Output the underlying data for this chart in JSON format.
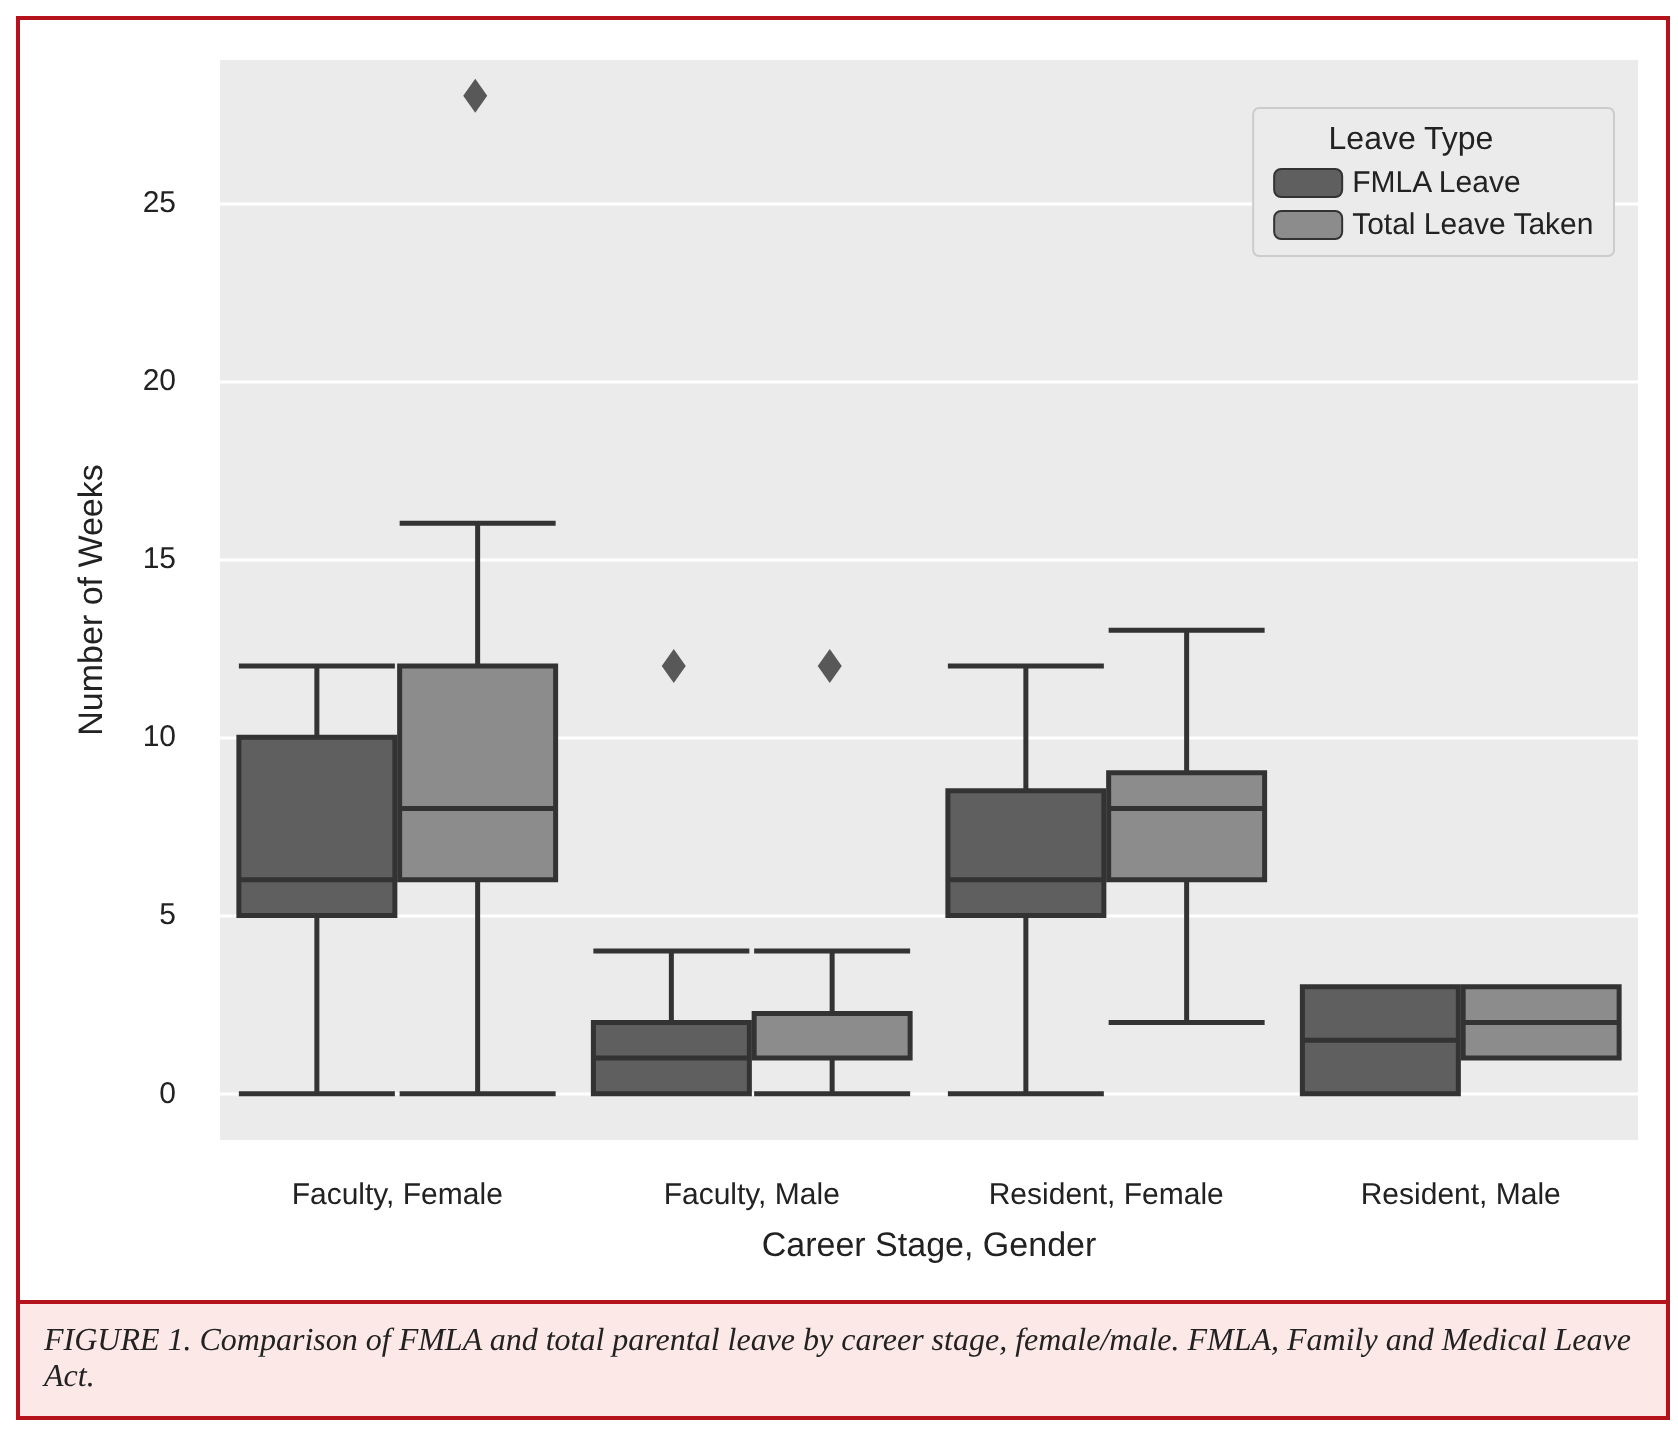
{
  "chart_data": {
    "type": "box",
    "xlabel": "Career Stage, Gender",
    "ylabel": "Number of Weeks",
    "legend_title": "Leave Type",
    "legend": "top right",
    "grid": "y",
    "ylim": [
      -1.3,
      29
    ],
    "yticks": [
      0,
      5,
      10,
      15,
      20,
      25
    ],
    "categories": [
      "Faculty, Female",
      "Faculty, Male",
      "Resident, Female",
      "Resident, Male"
    ],
    "series": [
      {
        "name": "FMLA Leave",
        "color": "#5f5f5f",
        "boxes": [
          {
            "low": 0,
            "q1": 5,
            "median": 6,
            "q3": 10,
            "high": 12
          },
          {
            "low": 0,
            "q1": 0,
            "median": 1,
            "q3": 2,
            "high": 4,
            "outliers": [
              12
            ]
          },
          {
            "low": 0,
            "q1": 5,
            "median": 6,
            "q3": 8.5,
            "high": 12
          },
          {
            "low": 0,
            "q1": 0,
            "median": 1.5,
            "q3": 3,
            "high": 3
          }
        ]
      },
      {
        "name": "Total Leave Taken",
        "color": "#8c8c8c",
        "boxes": [
          {
            "low": 0,
            "q1": 6,
            "median": 8,
            "q3": 12,
            "high": 16,
            "outliers": [
              28
            ]
          },
          {
            "low": 0,
            "q1": 1,
            "median": 1,
            "q3": 2.25,
            "high": 4,
            "outliers": [
              12
            ]
          },
          {
            "low": 2,
            "q1": 6,
            "median": 8,
            "q3": 9,
            "high": 13
          },
          {
            "low": 1,
            "q1": 1,
            "median": 2,
            "q3": 3,
            "high": 3
          }
        ]
      }
    ],
    "annotations": [
      "FIGURE 1. Comparison of FMLA and total parental leave by career stage, female/male. FMLA, Family and Medical Leave Act."
    ]
  }
}
